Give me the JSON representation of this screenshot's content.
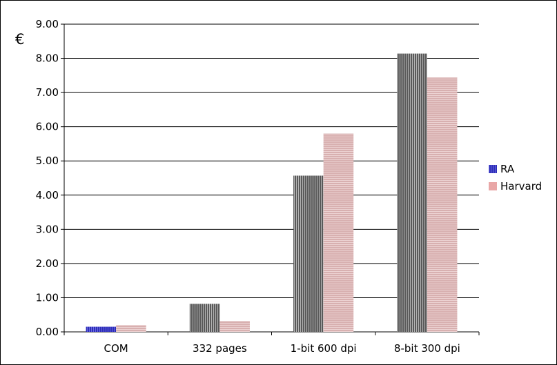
{
  "chart_data": {
    "type": "bar",
    "unit_label": "€",
    "categories": [
      "COM",
      "332 pages",
      "1-bit 600 dpi",
      "8-bit 300 dpi"
    ],
    "series": [
      {
        "name": "RA",
        "values": [
          0.15,
          0.82,
          4.57,
          8.14
        ],
        "colors": [
          "#3333cc",
          "#6e6e6e",
          "#6e6e6e",
          "#6e6e6e"
        ]
      },
      {
        "name": "Harvard",
        "values": [
          0.2,
          0.32,
          5.8,
          7.44
        ],
        "color": "#d9b3b3"
      }
    ],
    "legend_colors": [
      "#3333cc",
      "#e9a7a7"
    ],
    "yticks": [
      "0.00",
      "1.00",
      "2.00",
      "3.00",
      "4.00",
      "5.00",
      "6.00",
      "7.00",
      "8.00",
      "9.00"
    ],
    "ylim": [
      0,
      9
    ],
    "grid": true,
    "legend": "right"
  }
}
